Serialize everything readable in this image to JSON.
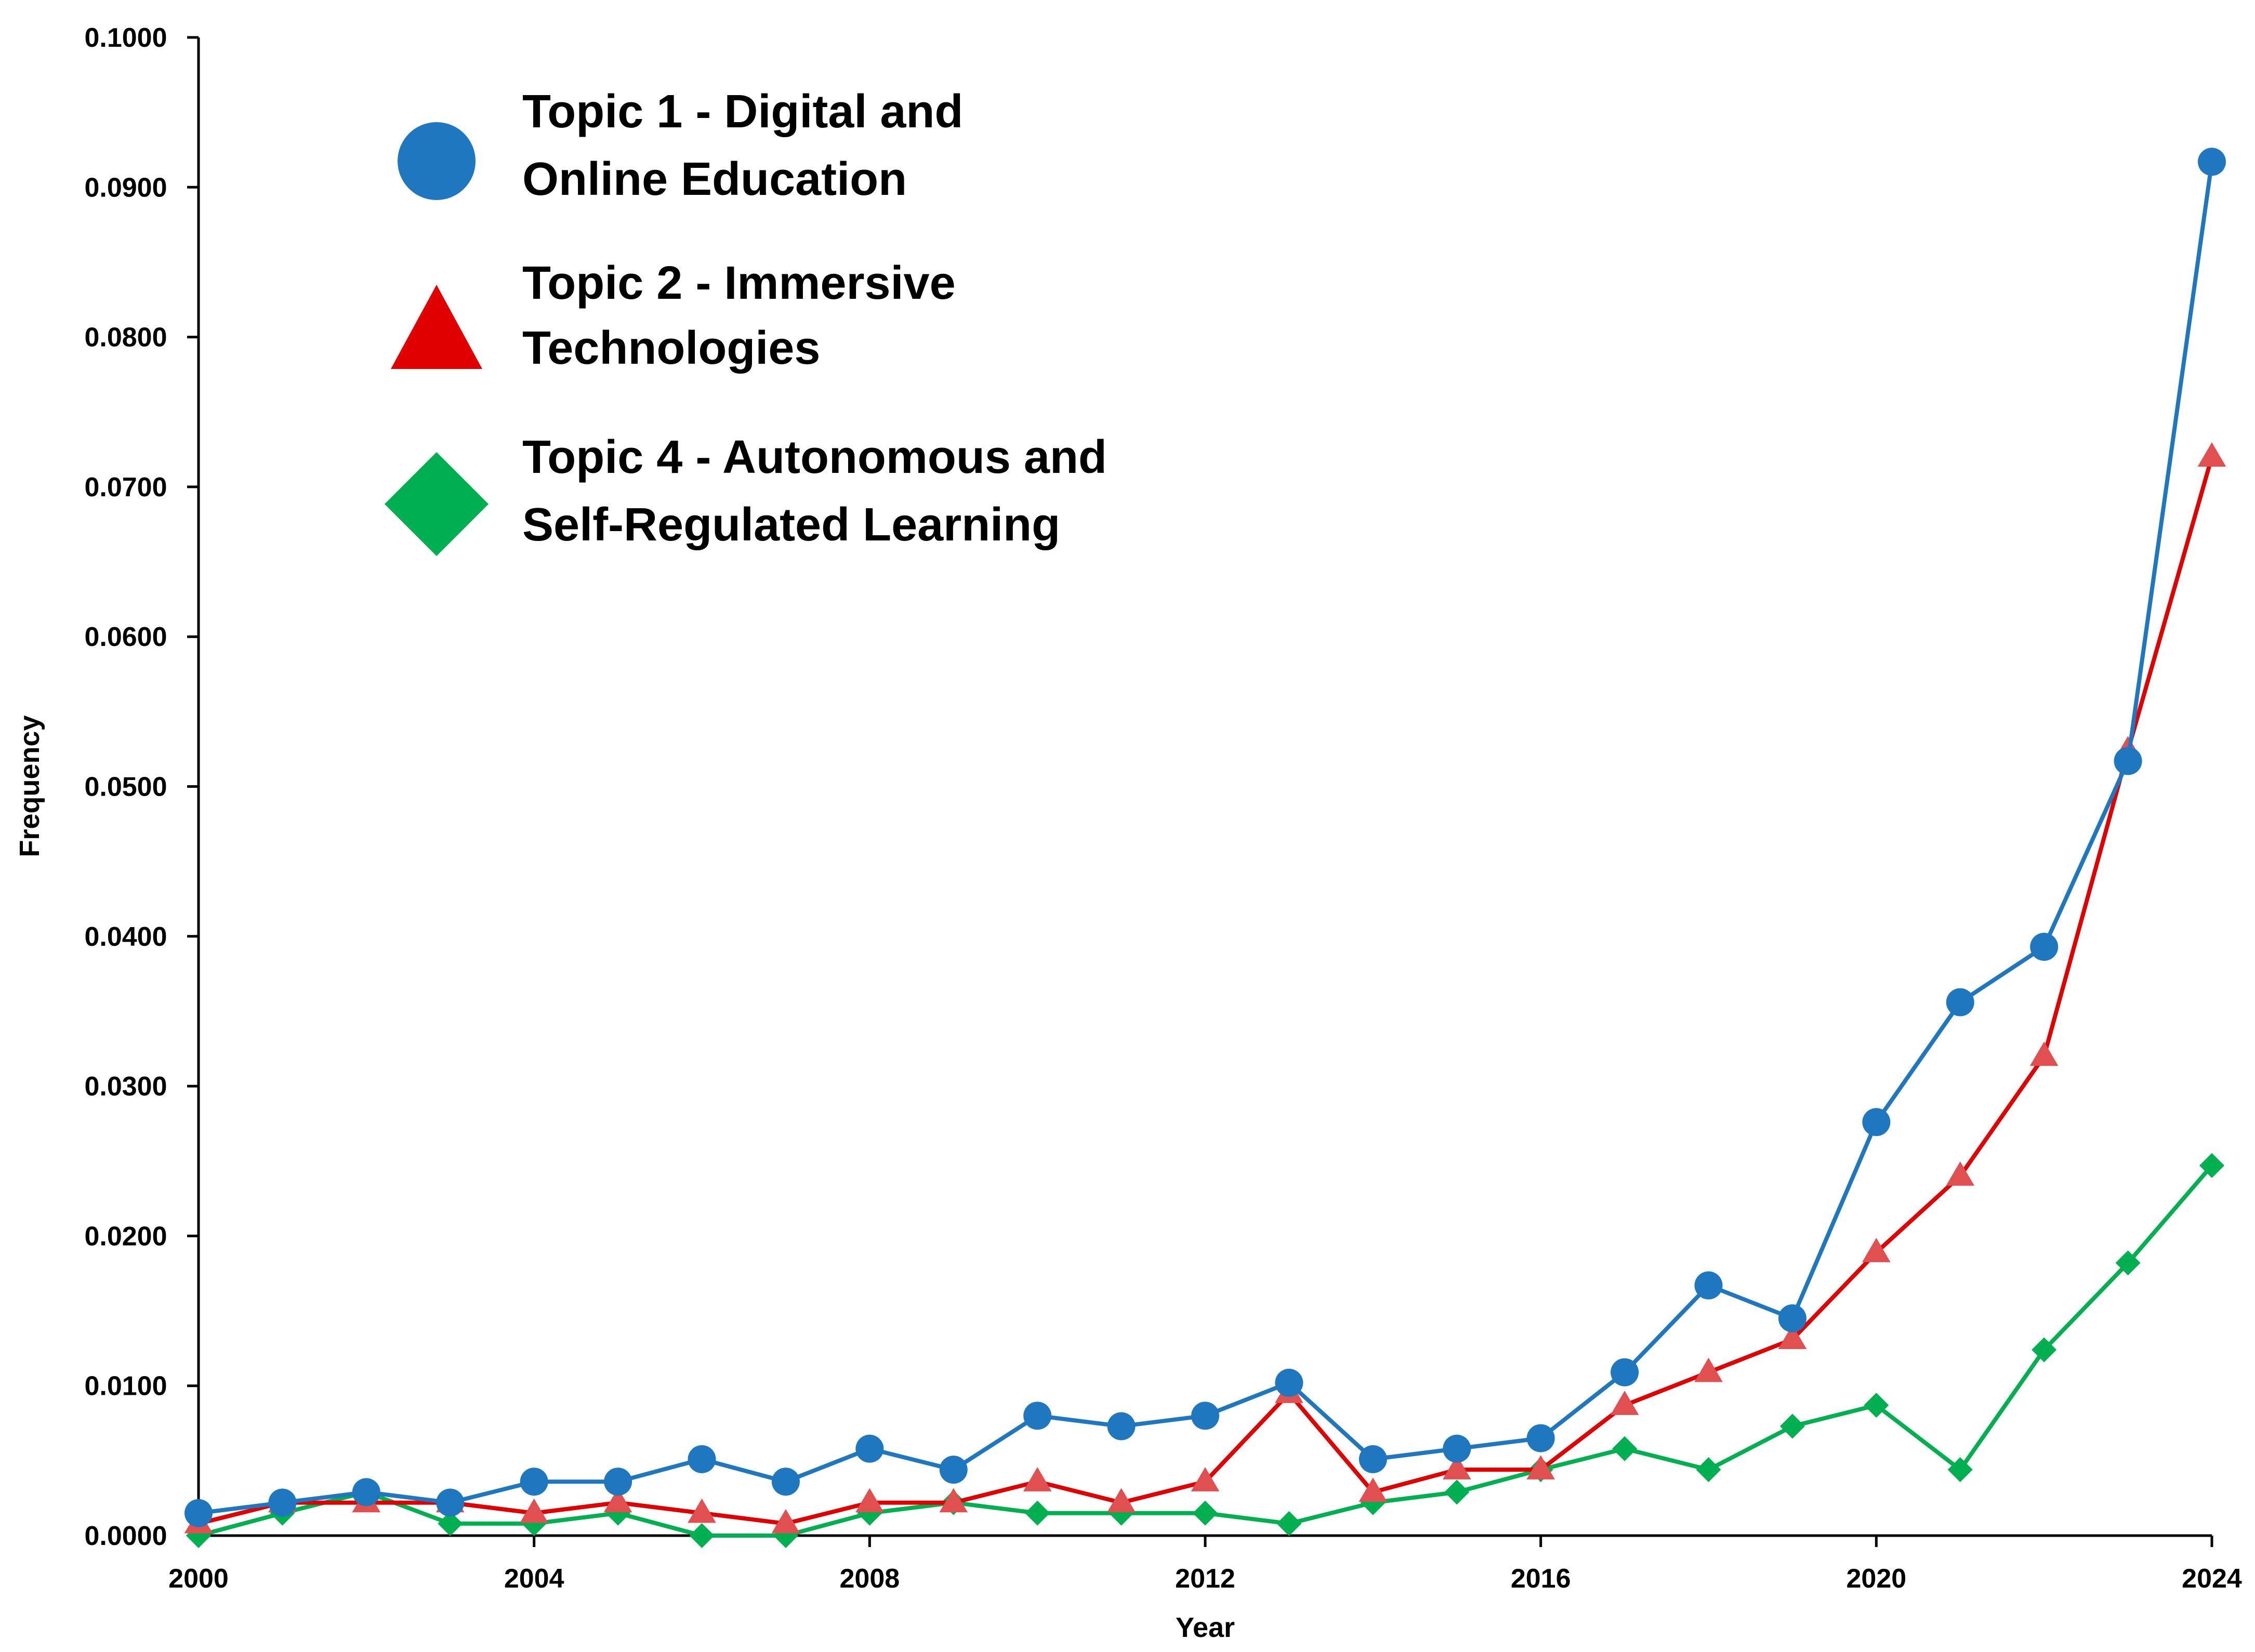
{
  "chart_data": {
    "type": "line",
    "title": "",
    "xlabel": "Year",
    "ylabel": "Frequency",
    "xlim": [
      2000,
      2024
    ],
    "ylim": [
      0,
      0.1
    ],
    "x_ticks": [
      "2000",
      "2004",
      "2008",
      "2012",
      "2016",
      "2020",
      "2024"
    ],
    "y_ticks": [
      "0.0000",
      "0.0100",
      "0.0200",
      "0.0300",
      "0.0400",
      "0.0500",
      "0.0600",
      "0.0700",
      "0.0800",
      "0.0900",
      "0.1000"
    ],
    "grid": false,
    "legend_position": "top-left",
    "x": [
      2000,
      2001,
      2002,
      2003,
      2004,
      2005,
      2006,
      2007,
      2008,
      2009,
      2010,
      2011,
      2012,
      2013,
      2014,
      2015,
      2016,
      2017,
      2018,
      2019,
      2020,
      2021,
      2022,
      2023,
      2024
    ],
    "series": [
      {
        "name": "Topic 1 - Digital and Online Education",
        "legend_lines": [
          "Topic 1 - Digital and",
          "Online Education"
        ],
        "marker": "circle",
        "color": "#1f77c0",
        "values": [
          0.0015,
          0.0022,
          0.0029,
          0.0022,
          0.0036,
          0.0036,
          0.0051,
          0.0036,
          0.0058,
          0.0044,
          0.008,
          0.0073,
          0.008,
          0.0102,
          0.0051,
          0.0058,
          0.0065,
          0.0109,
          0.0167,
          0.0145,
          0.0276,
          0.0356,
          0.0393,
          0.0517,
          0.0917
        ]
      },
      {
        "name": "Topic 2 - Immersive Technologies",
        "legend_lines": [
          "Topic 2 - Immersive",
          "Technologies"
        ],
        "marker": "triangle",
        "color": "#e00000",
        "marker_color": "#e05050",
        "values": [
          0.0008,
          0.0022,
          0.0022,
          0.0022,
          0.0015,
          0.0022,
          0.0015,
          0.0008,
          0.0022,
          0.0022,
          0.0036,
          0.0022,
          0.0036,
          0.0095,
          0.0029,
          0.0044,
          0.0044,
          0.0087,
          0.0109,
          0.0131,
          0.0189,
          0.024,
          0.032,
          0.0524,
          0.072
        ]
      },
      {
        "name": "Topic 4 - Autonomous and Self-Regulated Learning",
        "legend_lines": [
          "Topic 4 - Autonomous and",
          "Self-Regulated Learning"
        ],
        "marker": "diamond",
        "color": "#00b050",
        "values": [
          0.0,
          0.0015,
          0.0029,
          0.0008,
          0.0008,
          0.0015,
          0.0,
          0.0,
          0.0015,
          0.0022,
          0.0015,
          0.0015,
          0.0015,
          0.0008,
          0.0022,
          0.0029,
          0.0044,
          0.0058,
          0.0044,
          0.0073,
          0.0087,
          0.0044,
          0.0124,
          0.0182,
          0.0247
        ]
      }
    ]
  }
}
